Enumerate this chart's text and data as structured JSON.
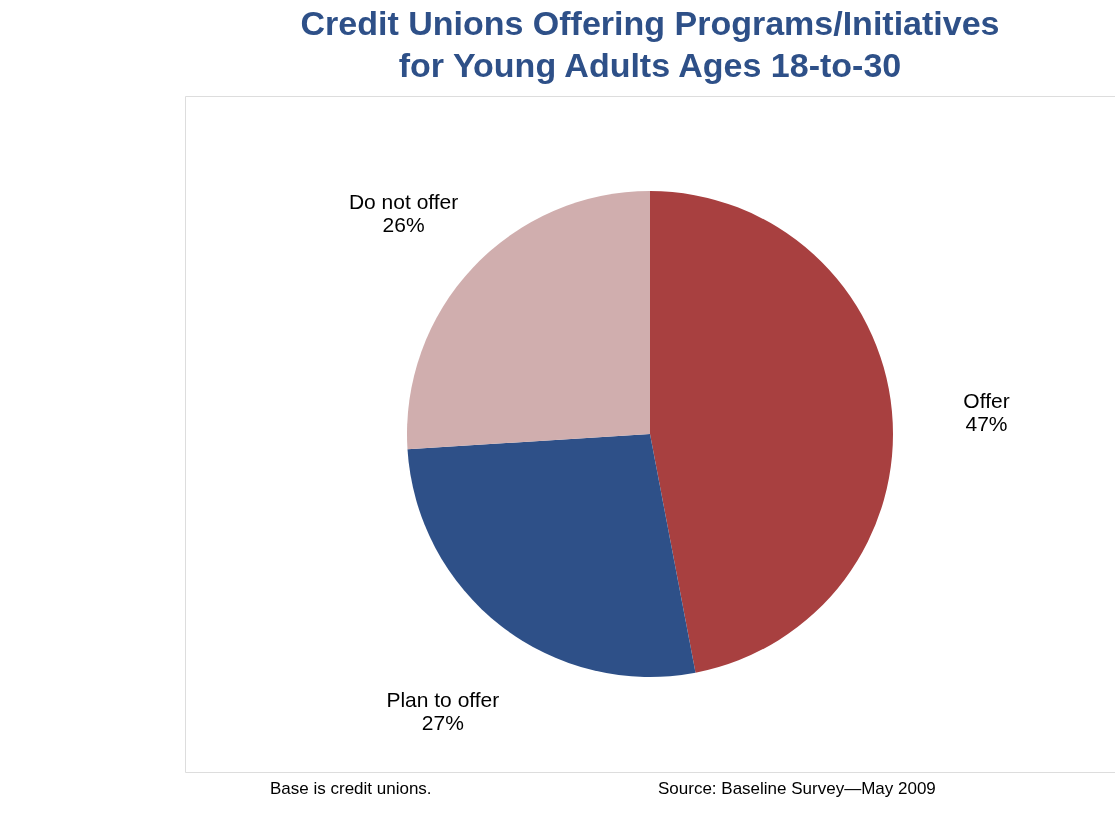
{
  "chart_data": {
    "type": "pie",
    "title": "Credit Unions Offering Programs/Initiatives for Young Adults Ages 18-to-30",
    "categories": [
      "Offer",
      "Plan to offer",
      "Do not offer"
    ],
    "values": [
      47,
      27,
      26
    ],
    "value_labels": [
      "47%",
      "27%",
      "26%"
    ],
    "colors": [
      "#a84040",
      "#2e5088",
      "#d0aeae"
    ],
    "annotations": [
      "Base is credit unions.",
      "Source: Baseline Survey—May 2009"
    ]
  }
}
